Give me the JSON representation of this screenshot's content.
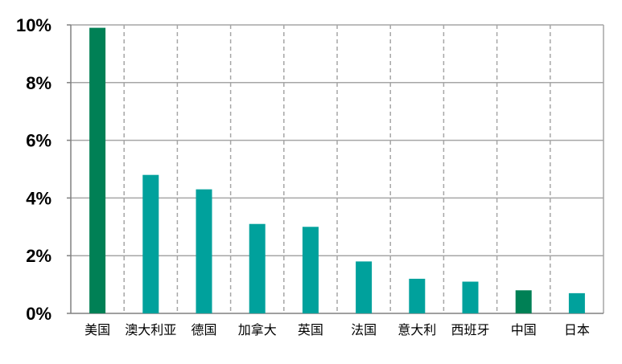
{
  "chart_data": {
    "type": "bar",
    "title": "",
    "xlabel": "",
    "ylabel": "",
    "ylim": [
      0,
      10
    ],
    "yticks": [
      0,
      2,
      4,
      6,
      8,
      10
    ],
    "ytick_labels": [
      "0%",
      "2%",
      "4%",
      "6%",
      "8%",
      "10%"
    ],
    "grid": {
      "horizontal": "solid",
      "vertical": "dashed"
    },
    "legend": "none",
    "categories": [
      "美国",
      "澳大利亚",
      "德国",
      "加拿大",
      "英国",
      "法国",
      "意大利",
      "西班牙",
      "中国",
      "日本"
    ],
    "values": [
      9.9,
      4.8,
      4.3,
      3.1,
      3.0,
      1.8,
      1.2,
      1.1,
      0.8,
      0.7
    ],
    "bar_colors": [
      "#008055",
      "#00A19C",
      "#00A19C",
      "#00A19C",
      "#00A19C",
      "#00A19C",
      "#00A19C",
      "#00A19C",
      "#008055",
      "#00A19C"
    ],
    "colors": {
      "highlight": "#008055",
      "default": "#00A19C",
      "grid": "#a6a6a6",
      "axis": "#808080"
    }
  }
}
